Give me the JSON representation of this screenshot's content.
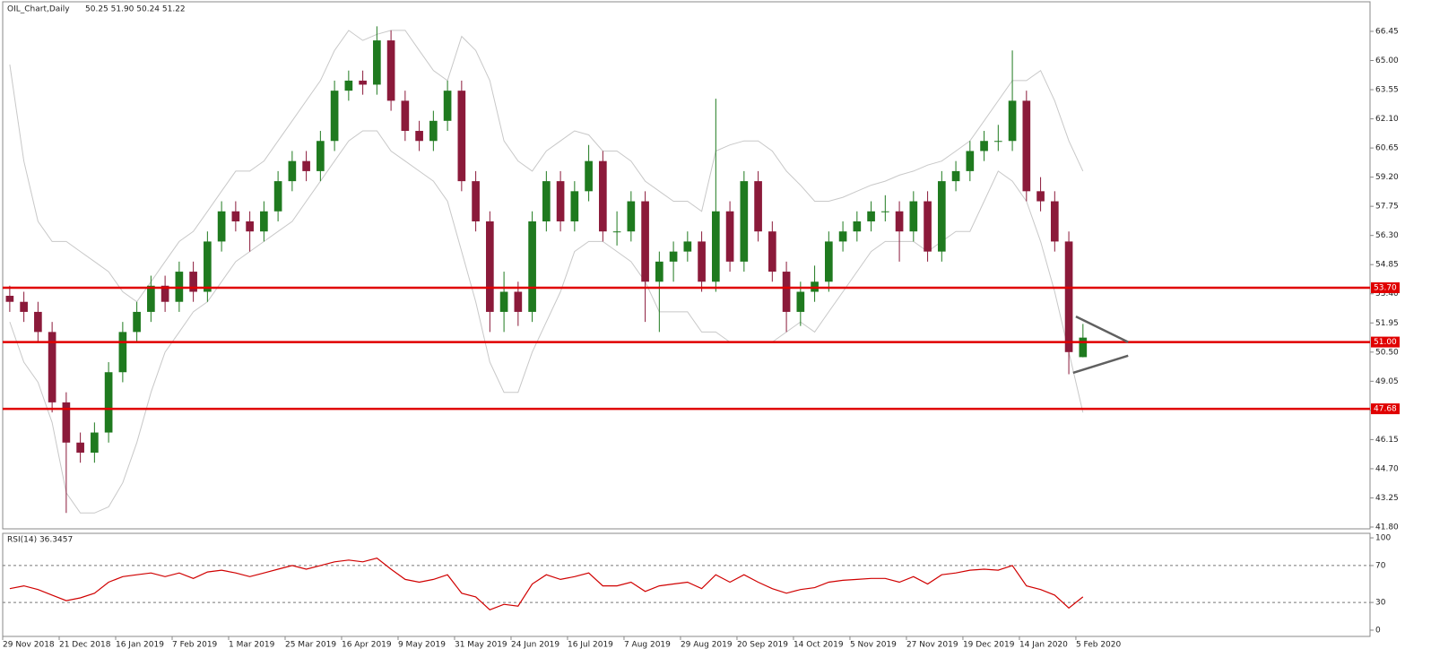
{
  "chart_data": [
    {
      "type": "candlestick",
      "title": "OIL_Chart,Daily",
      "subtitle": "50.25 51.90 50.24 51.22",
      "up_color": "#1f7a1f",
      "down_color": "#8b1a3a",
      "open": [
        53.3,
        53,
        52.5,
        51.5,
        48,
        46,
        45.5,
        46.5,
        49.5,
        51.5,
        52.5,
        53.8,
        53,
        54.5,
        53.5,
        56,
        57.5,
        57,
        56.5,
        57.5,
        59,
        60,
        59.5,
        61,
        63.5,
        64,
        63.8,
        66,
        63,
        61.5,
        61,
        62,
        63.5,
        59,
        57,
        52.5,
        53.5,
        52.5,
        57,
        59,
        57,
        58.5,
        60,
        56.5,
        56.5,
        58,
        54,
        55,
        55.5,
        56,
        54,
        57.5,
        55,
        59,
        56.5,
        54.5,
        52.5,
        53.5,
        54,
        56,
        56.5,
        57,
        57.5,
        57.5,
        56.5,
        58,
        55.5,
        59,
        59.5,
        60.5,
        61,
        61,
        63,
        58.5,
        58,
        56,
        50.25
      ],
      "high": [
        53.8,
        53.5,
        53,
        52,
        48.5,
        46.5,
        47,
        50,
        52,
        53,
        54.3,
        54.3,
        55,
        55,
        56.5,
        58,
        58,
        57.5,
        58,
        59.5,
        60.5,
        60.5,
        61.5,
        64,
        64.5,
        64.5,
        66.7,
        66.5,
        63.5,
        62,
        62.5,
        64,
        64,
        59.5,
        57.5,
        54.5,
        54,
        57.5,
        59.5,
        59.5,
        59,
        60.8,
        60.5,
        57.5,
        58.5,
        58.5,
        55.5,
        56,
        56.5,
        56.5,
        63.1,
        58,
        59.5,
        59.5,
        57,
        55,
        54,
        54.8,
        56.5,
        57,
        57.5,
        58,
        58.3,
        58,
        58.5,
        58.5,
        59.5,
        60,
        61,
        61.5,
        61.8,
        65.5,
        63.5,
        59.2,
        58.5,
        56.5,
        51.9
      ],
      "low": [
        52.5,
        52,
        51,
        47.5,
        42.5,
        45,
        45,
        46,
        49,
        51,
        52,
        52.5,
        52.5,
        53,
        53,
        55.5,
        56.5,
        55.5,
        56,
        57,
        58.5,
        59,
        59,
        60.5,
        63,
        63.3,
        63.3,
        62.5,
        61,
        60.5,
        60.5,
        61.5,
        58.5,
        56.5,
        51.5,
        51.5,
        51.8,
        52,
        56.5,
        56.5,
        56.5,
        58,
        56,
        55.8,
        56,
        52,
        51.5,
        54,
        55,
        53.5,
        53.5,
        54.5,
        54.5,
        56,
        54,
        51.5,
        51.8,
        53,
        53.5,
        55.5,
        56,
        56.5,
        57,
        55,
        56,
        55,
        55,
        58.5,
        59,
        60,
        60.5,
        60.5,
        58,
        57.5,
        55.5,
        49.4,
        50.24
      ],
      "close": [
        53,
        52.5,
        51.5,
        48,
        46,
        45.5,
        46.5,
        49.5,
        51.5,
        52.5,
        53.8,
        53,
        54.5,
        53.5,
        56,
        57.5,
        57,
        56.5,
        57.5,
        59,
        60,
        59.5,
        61,
        63.5,
        64,
        63.8,
        66,
        63,
        61.5,
        61,
        62,
        63.5,
        59,
        57,
        52.5,
        53.5,
        52.5,
        57,
        59,
        57,
        58.5,
        60,
        56.5,
        56.5,
        58,
        54,
        55,
        55.5,
        56,
        54,
        57.5,
        55,
        59,
        56.5,
        54.5,
        52.5,
        53.5,
        54,
        56,
        56.5,
        57,
        57.5,
        57.5,
        56.5,
        58,
        55.5,
        59,
        59.5,
        60.5,
        61,
        61,
        63,
        58.5,
        58,
        56,
        50.5,
        51.22
      ],
      "bands": {
        "color": "#c8c8c8",
        "upper": [
          64.8,
          60,
          57,
          56,
          56,
          55.5,
          55,
          54.5,
          53.5,
          53,
          54,
          55,
          56,
          56.5,
          57.5,
          58.5,
          59.5,
          59.5,
          60,
          61,
          62,
          63,
          64,
          65.5,
          66.5,
          66,
          66.3,
          66.5,
          66.5,
          65.5,
          64.5,
          64,
          66.2,
          65.5,
          64,
          61,
          60,
          59.5,
          60.5,
          61,
          61.5,
          61.3,
          60.5,
          60.5,
          60,
          59,
          58.5,
          58,
          58,
          57.5,
          60.5,
          60.8,
          61,
          61,
          60.5,
          59.5,
          58.8,
          58,
          58,
          58.2,
          58.5,
          58.8,
          59,
          59.3,
          59.5,
          59.8,
          60,
          60.5,
          61,
          62,
          63,
          64,
          64,
          64.5,
          63,
          61,
          59.5
        ],
        "lower": [
          52,
          50,
          49,
          47,
          43.5,
          42.5,
          42.5,
          42.8,
          44,
          46,
          48.5,
          50.5,
          51.5,
          52.5,
          53,
          54,
          55,
          55.5,
          56,
          56.5,
          57,
          58,
          59,
          60,
          61,
          61.5,
          61.5,
          60.5,
          60,
          59.5,
          59,
          58,
          55.5,
          53,
          50,
          48.5,
          48.5,
          50.5,
          52,
          53.5,
          55.5,
          56,
          56,
          55.5,
          55,
          54,
          52.5,
          52.5,
          52.5,
          51.5,
          51.5,
          51,
          51,
          51,
          51,
          51.5,
          52,
          51.5,
          52.5,
          53.5,
          54.5,
          55.5,
          56,
          56,
          56,
          55.5,
          56,
          56.5,
          56.5,
          58,
          59.5,
          59,
          58,
          56,
          53.5,
          50.5,
          47.5
        ]
      },
      "levels": [
        {
          "value": 53.7,
          "label": "53.70"
        },
        {
          "value": 51,
          "label": "51.00"
        },
        {
          "value": 47.68,
          "label": "47.68"
        }
      ],
      "level_color": "#e00000",
      "trendlines": [
        {
          "x": [
            76,
            79.7
          ],
          "y": [
            52.27,
            51.0
          ]
        },
        {
          "x": [
            75.8,
            79.7
          ],
          "y": [
            49.47,
            50.32
          ]
        }
      ],
      "trendline_color": "#606060",
      "xlim": [
        0,
        96.83
      ],
      "ylim": [
        41.71,
        67.92
      ],
      "xticks": [
        {
          "value": 0,
          "label": "29 Nov 2018"
        },
        {
          "value": 4,
          "label": "21 Dec 2018"
        },
        {
          "value": 8,
          "label": "16 Jan 2019"
        },
        {
          "value": 12,
          "label": "7 Feb 2019"
        },
        {
          "value": 16,
          "label": "1 Mar 2019"
        },
        {
          "value": 20,
          "label": "25 Mar 2019"
        },
        {
          "value": 24,
          "label": "16 Apr 2019"
        },
        {
          "value": 28,
          "label": "9 May 2019"
        },
        {
          "value": 32,
          "label": "31 May 2019"
        },
        {
          "value": 36,
          "label": "24 Jun 2019"
        },
        {
          "value": 40,
          "label": "16 Jul 2019"
        },
        {
          "value": 44,
          "label": "7 Aug 2019"
        },
        {
          "value": 48,
          "label": "29 Aug 2019"
        },
        {
          "value": 52,
          "label": "20 Sep 2019"
        },
        {
          "value": 56,
          "label": "14 Oct 2019"
        },
        {
          "value": 60,
          "label": "5 Nov 2019"
        },
        {
          "value": 64,
          "label": "27 Nov 2019"
        },
        {
          "value": 68,
          "label": "19 Dec 2019"
        },
        {
          "value": 72,
          "label": "14 Jan 2020"
        },
        {
          "value": 76,
          "label": "5 Feb 2020"
        }
      ],
      "yticks": [
        {
          "value": 66.45,
          "label": "66.45"
        },
        {
          "value": 65,
          "label": "65.00"
        },
        {
          "value": 63.55,
          "label": "63.55"
        },
        {
          "value": 62.1,
          "label": "62.10"
        },
        {
          "value": 60.65,
          "label": "60.65"
        },
        {
          "value": 59.2,
          "label": "59.20"
        },
        {
          "value": 57.75,
          "label": "57.75"
        },
        {
          "value": 56.3,
          "label": "56.30"
        },
        {
          "value": 54.85,
          "label": "54.85"
        },
        {
          "value": 53.4,
          "label": "53.40"
        },
        {
          "value": 51.95,
          "label": "51.95"
        },
        {
          "value": 50.5,
          "label": "50.50"
        },
        {
          "value": 49.05,
          "label": "49.05"
        },
        {
          "value": 47.6,
          "label": "47.60"
        },
        {
          "value": 46.15,
          "label": "46.15"
        },
        {
          "value": 44.7,
          "label": "44.70"
        },
        {
          "value": 43.25,
          "label": "43.25"
        },
        {
          "value": 41.8,
          "label": "41.80"
        }
      ]
    },
    {
      "type": "line",
      "title": "RSI(14) 36.3457",
      "color": "#d00000",
      "values": [
        45,
        48,
        44,
        38,
        32,
        35,
        40,
        52,
        58,
        60,
        62,
        58,
        62,
        56,
        63,
        65,
        62,
        58,
        62,
        66,
        70,
        66,
        70,
        74,
        76,
        74,
        78,
        66,
        55,
        52,
        55,
        60,
        40,
        36,
        22,
        28,
        26,
        50,
        60,
        55,
        58,
        62,
        48,
        48,
        52,
        42,
        48,
        50,
        52,
        45,
        60,
        52,
        60,
        52,
        45,
        40,
        44,
        46,
        52,
        54,
        55,
        56,
        56,
        52,
        58,
        50,
        60,
        62,
        65,
        66,
        65,
        70,
        48,
        44,
        38,
        24,
        36
      ],
      "levels": [
        70,
        30
      ],
      "xlim": [
        0,
        96.83
      ],
      "ylim": [
        -6.8,
        104.9
      ],
      "yticks": [
        0,
        30,
        70,
        100
      ]
    }
  ]
}
